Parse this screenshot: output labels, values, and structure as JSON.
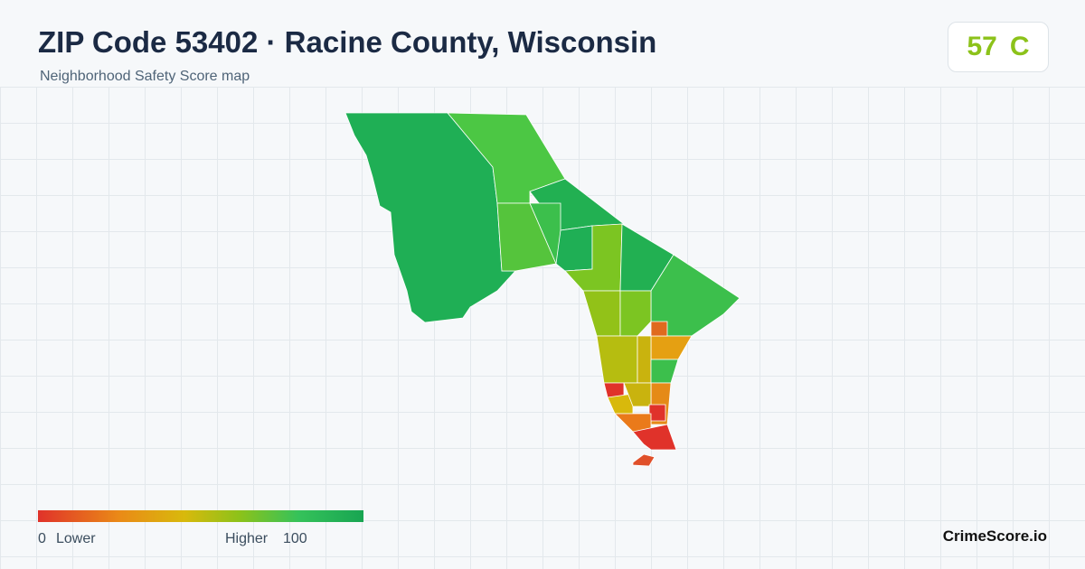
{
  "header": {
    "title": "ZIP Code 53402 · Racine County, Wisconsin",
    "subtitle": "Neighborhood Safety Score map"
  },
  "score": {
    "value": 57,
    "grade": "C"
  },
  "legend": {
    "min": 0,
    "min_label": "Lower",
    "max_label": "Higher",
    "max": 100
  },
  "footer": {
    "brand": "CrimeScore.io"
  }
}
